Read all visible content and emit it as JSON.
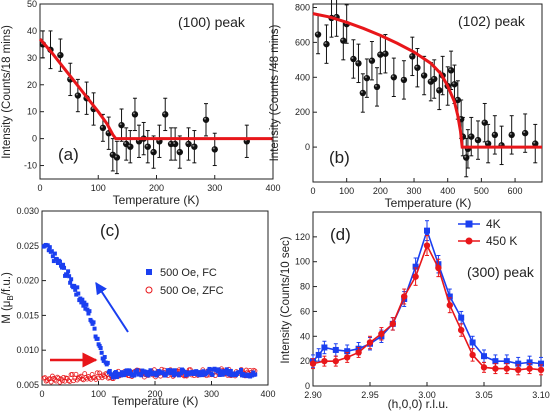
{
  "colors": {
    "axis": "#222222",
    "fit": "#e8161a",
    "blue": "#1a3ff0",
    "red": "#e8161a",
    "black": "#111111"
  },
  "chart_data": [
    {
      "panel_label": "(a)",
      "type": "scatter",
      "annotation": "(100) peak",
      "xlabel": "Temperature (K)",
      "ylabel": "Intensity (Counts/18 mins)",
      "xlim": [
        0,
        400
      ],
      "ylim": [
        -15,
        50
      ],
      "xticks": [
        0,
        100,
        200,
        300,
        400
      ],
      "yticks": [
        -10,
        0,
        10,
        20,
        30,
        40,
        50
      ],
      "series": [
        {
          "marker": "filled-circle",
          "x": [
            5,
            18,
            35,
            52,
            65,
            80,
            92,
            108,
            118,
            125,
            132,
            140,
            148,
            155,
            163,
            170,
            178,
            185,
            195,
            205,
            215,
            225,
            232,
            240,
            255,
            265,
            285,
            300,
            355
          ],
          "y": [
            35,
            33,
            31,
            22,
            16,
            15,
            11,
            4,
            2,
            -6,
            -7,
            5,
            -2,
            -3,
            9,
            -1,
            0,
            -3,
            -5,
            -1,
            9,
            -2,
            -2,
            -5,
            -2,
            -3,
            7,
            -4,
            -1
          ],
          "err": [
            5,
            7,
            6,
            6,
            6,
            6,
            6,
            5,
            6,
            6,
            6,
            6,
            6,
            6,
            6,
            6,
            6,
            6,
            6,
            6,
            6,
            6,
            6,
            6,
            6,
            6,
            6,
            6,
            6
          ]
        }
      ],
      "fit": {
        "x": [
          0,
          20,
          40,
          60,
          80,
          100,
          115,
          125,
          130,
          400
        ],
        "y": [
          37,
          32,
          26.5,
          21,
          15.5,
          10,
          5.5,
          1.5,
          0,
          0
        ]
      }
    },
    {
      "panel_label": "(b)",
      "type": "scatter",
      "annotation": "(102) peak",
      "xlabel": "Temperature (K)",
      "ylabel": "Intensity (Counts /48 mins)",
      "xlim": [
        0,
        680
      ],
      "ylim": [
        -200,
        820
      ],
      "xticks": [
        0,
        100,
        200,
        300,
        400,
        500,
        600
      ],
      "yticks": [
        0,
        200,
        400,
        600,
        800
      ],
      "series": [
        {
          "marker": "filled-circle",
          "x": [
            15,
            40,
            55,
            70,
            90,
            100,
            120,
            135,
            148,
            160,
            175,
            190,
            200,
            215,
            240,
            270,
            295,
            310,
            330,
            350,
            360,
            375,
            385,
            400,
            410,
            420,
            430,
            440,
            445,
            455,
            460,
            470,
            490,
            510,
            520,
            540,
            560,
            590,
            630,
            660
          ],
          "y": [
            645,
            590,
            740,
            745,
            610,
            705,
            505,
            480,
            310,
            395,
            495,
            345,
            530,
            535,
            400,
            385,
            520,
            455,
            410,
            375,
            390,
            325,
            410,
            350,
            440,
            360,
            270,
            160,
            60,
            -60,
            -10,
            60,
            40,
            140,
            20,
            70,
            10,
            70,
            80,
            20
          ],
          "err": [
            110,
            110,
            110,
            110,
            110,
            110,
            110,
            110,
            110,
            110,
            110,
            110,
            110,
            110,
            110,
            110,
            110,
            110,
            110,
            110,
            110,
            110,
            110,
            110,
            110,
            110,
            110,
            110,
            110,
            110,
            110,
            110,
            110,
            110,
            110,
            110,
            110,
            110,
            110,
            110
          ]
        }
      ],
      "fit": {
        "x": [
          0,
          50,
          100,
          150,
          200,
          250,
          300,
          350,
          380,
          400,
          420,
          430,
          438,
          443,
          680
        ],
        "y": [
          765,
          745,
          715,
          680,
          640,
          595,
          545,
          480,
          420,
          350,
          260,
          180,
          90,
          0,
          0
        ]
      }
    },
    {
      "panel_label": "(c)",
      "type": "scatter",
      "xlabel": "Temperature (K)",
      "ylabel": "M (μB/f.u.)",
      "ylabel_main": "M (μ",
      "ylabel_sub": "B",
      "ylabel_tail": "/f.u.)",
      "xlim": [
        0,
        400
      ],
      "ylim": [
        0.005,
        0.03
      ],
      "xticks": [
        0,
        100,
        200,
        300,
        400
      ],
      "yticks": [
        0.005,
        0.01,
        0.015,
        0.02,
        0.025,
        0.03
      ],
      "ytick_labels": [
        "0.005",
        "0.010",
        "0.015",
        "0.020",
        "0.025",
        "0.030"
      ],
      "legend_position": "center-right",
      "series": [
        {
          "name": "500 Oe, FC",
          "marker": "filled-square",
          "color": "#1a3ff0",
          "x": [
            5,
            15,
            25,
            35,
            45,
            55,
            65,
            75,
            85,
            95,
            105,
            115,
            125,
            150,
            200,
            250,
            300,
            350,
            375
          ],
          "y": [
            0.025,
            0.024,
            0.023,
            0.022,
            0.0208,
            0.0195,
            0.018,
            0.0165,
            0.015,
            0.0125,
            0.01,
            0.0078,
            0.0065,
            0.0067,
            0.0067,
            0.0068,
            0.0069,
            0.0068,
            0.0065
          ]
        },
        {
          "name": "500 Oe, ZFC",
          "marker": "open-circle",
          "color": "#e8161a",
          "x": [
            5,
            25,
            50,
            75,
            100,
            125,
            150,
            200,
            250,
            300,
            350,
            375
          ],
          "y": [
            0.006,
            0.0058,
            0.006,
            0.0061,
            0.0063,
            0.0064,
            0.0066,
            0.0067,
            0.0068,
            0.0069,
            0.0068,
            0.0066
          ]
        }
      ]
    },
    {
      "panel_label": "(d)",
      "type": "line",
      "annotation": "(300) peak",
      "xlabel": "(h,0,0)  r.l.u.",
      "ylabel": "Intensity (Counts/10 sec)",
      "xlim": [
        2.9,
        3.1
      ],
      "ylim": [
        0,
        140
      ],
      "xticks": [
        2.9,
        2.95,
        3.0,
        3.05,
        3.1
      ],
      "xtick_labels": [
        "2.90",
        "2.95",
        "3.00",
        "3.05",
        "3.10"
      ],
      "yticks": [
        0,
        20,
        40,
        60,
        80,
        100,
        120
      ],
      "legend_position": "top-right",
      "series": [
        {
          "name": "4K",
          "marker": "filled-square",
          "color": "#1a3ff0",
          "x": [
            2.9,
            2.905,
            2.91,
            2.92,
            2.93,
            2.94,
            2.95,
            2.96,
            2.97,
            2.98,
            2.99,
            3.0,
            3.01,
            3.02,
            3.03,
            3.04,
            3.05,
            3.06,
            3.07,
            3.08,
            3.09,
            3.1
          ],
          "y": [
            20,
            25,
            31,
            29,
            28,
            30,
            34,
            40,
            50,
            70,
            96,
            125,
            98,
            72,
            55,
            35,
            24,
            20,
            20,
            18,
            19,
            18
          ],
          "err": [
            5,
            5,
            5,
            5,
            5,
            5,
            5,
            5,
            5,
            6,
            7,
            8,
            7,
            6,
            5,
            5,
            5,
            5,
            5,
            5,
            5,
            5
          ]
        },
        {
          "name": "450 K",
          "marker": "filled-circle",
          "color": "#e8161a",
          "x": [
            2.9,
            2.91,
            2.92,
            2.93,
            2.94,
            2.95,
            2.96,
            2.97,
            2.98,
            2.99,
            3.0,
            3.01,
            3.02,
            3.03,
            3.04,
            3.05,
            3.06,
            3.07,
            3.08,
            3.09,
            3.1
          ],
          "y": [
            18,
            20,
            20,
            23,
            27,
            35,
            42,
            50,
            72,
            88,
            113,
            95,
            65,
            45,
            25,
            15,
            14,
            14,
            13,
            14,
            13
          ],
          "err": [
            4,
            4,
            4,
            4,
            4,
            5,
            5,
            5,
            6,
            7,
            8,
            7,
            6,
            5,
            5,
            4,
            4,
            4,
            4,
            4,
            4
          ]
        }
      ]
    }
  ]
}
